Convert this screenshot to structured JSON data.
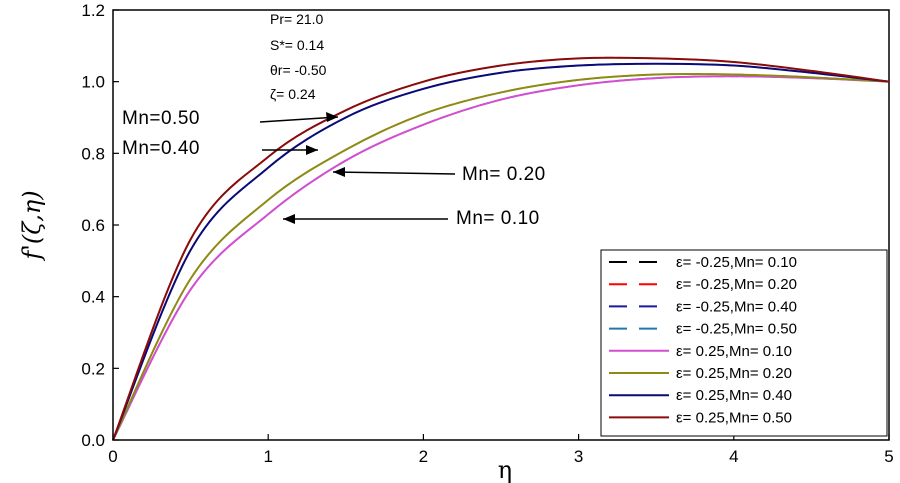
{
  "chart_data": {
    "type": "line",
    "title": "",
    "xlabel": "η",
    "ylabel": "f'(ζ,η)",
    "xlim": [
      0,
      5
    ],
    "ylim": [
      0,
      1.2
    ],
    "xticks": [
      "0",
      "1",
      "2",
      "3",
      "4",
      "5"
    ],
    "yticks": [
      "0.0",
      "0.2",
      "0.4",
      "0.6",
      "0.8",
      "1.0",
      "1.2"
    ],
    "parameters": [
      "Pr= 21.0",
      "S*= 0.14",
      "θr= -0.50",
      "ζ= 0.24"
    ],
    "annotations": [
      "Mn=0.50",
      "Mn=0.40",
      "Mn= 0.20",
      "Mn= 0.10"
    ],
    "legend_position": "bottom-right",
    "x": [
      0,
      0.5,
      1,
      1.5,
      2,
      2.5,
      3,
      3.5,
      4,
      4.5,
      5
    ],
    "series": [
      {
        "name": "ε= -0.25,Mn= 0.10",
        "color": "#000000",
        "style": "dashed",
        "values": [
          0,
          0.42,
          0.63,
          0.78,
          0.88,
          0.95,
          0.99,
          1.01,
          1.015,
          1.01,
          1.0
        ]
      },
      {
        "name": "ε= -0.25,Mn= 0.20",
        "color": "#ff0000",
        "style": "dashed",
        "values": [
          0,
          0.45,
          0.67,
          0.81,
          0.91,
          0.97,
          1.005,
          1.02,
          1.02,
          1.012,
          1.0
        ]
      },
      {
        "name": "ε= -0.25,Mn= 0.40",
        "color": "#1a1aa0",
        "style": "dashed",
        "values": [
          0,
          0.53,
          0.76,
          0.9,
          0.98,
          1.025,
          1.045,
          1.05,
          1.045,
          1.025,
          1.0
        ]
      },
      {
        "name": "ε= -0.25,Mn= 0.50",
        "color": "#2277aa",
        "style": "dashed",
        "values": [
          0,
          0.56,
          0.79,
          0.92,
          1.0,
          1.045,
          1.065,
          1.065,
          1.055,
          1.03,
          1.0
        ]
      },
      {
        "name": "ε= 0.25,Mn= 0.10",
        "color": "#d24fd2",
        "style": "solid",
        "values": [
          0,
          0.42,
          0.63,
          0.78,
          0.88,
          0.95,
          0.99,
          1.01,
          1.015,
          1.01,
          1.0
        ]
      },
      {
        "name": "ε= 0.25,Mn= 0.20",
        "color": "#8c8c14",
        "style": "solid",
        "values": [
          0,
          0.45,
          0.67,
          0.81,
          0.91,
          0.97,
          1.005,
          1.02,
          1.02,
          1.012,
          1.0
        ]
      },
      {
        "name": "ε= 0.25,Mn= 0.40",
        "color": "#0a0a78",
        "style": "solid",
        "values": [
          0,
          0.53,
          0.76,
          0.9,
          0.98,
          1.025,
          1.045,
          1.05,
          1.045,
          1.025,
          1.0
        ]
      },
      {
        "name": "ε= 0.25,Mn= 0.50",
        "color": "#8b0a0a",
        "style": "solid",
        "values": [
          0,
          0.56,
          0.79,
          0.92,
          1.0,
          1.045,
          1.065,
          1.065,
          1.055,
          1.03,
          1.0
        ]
      }
    ]
  }
}
